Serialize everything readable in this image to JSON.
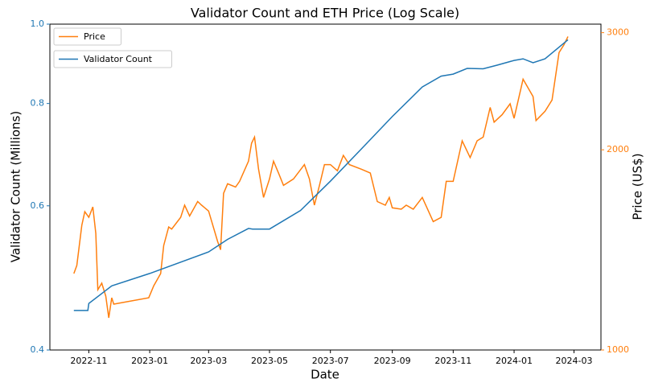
{
  "chart_data": {
    "type": "line",
    "title": "Validator Count and ETH Price (Log Scale)",
    "xlabel": "Date",
    "ylabel": "Validator Count (Millions)",
    "y2label": "Price (US$)",
    "xlim": [
      "2022-09-23",
      "2024-03-28"
    ],
    "xticks": [
      "2022-11",
      "2023-01",
      "2023-03",
      "2023-05",
      "2023-07",
      "2023-09",
      "2023-11",
      "2024-01",
      "2024-03"
    ],
    "ylim": [
      0.4,
      1
    ],
    "yticks": [
      0.4,
      0.6,
      0.8,
      {
        "value": 1,
        "label": "1.0"
      }
    ],
    "ylog": true,
    "y2lim": [
      1000,
      3090
    ],
    "y2ticks": [
      1000,
      2000,
      3000
    ],
    "y2log": true,
    "series": [
      {
        "name": "Price",
        "color": "#ff7f0e",
        "axis": "y2",
        "legend": "upper left",
        "x": [
          "2022-10-17",
          "2022-10-20",
          "2022-10-25",
          "2022-10-28",
          "2022-11-01",
          "2022-11-05",
          "2022-11-08",
          "2022-11-10",
          "2022-11-14",
          "2022-11-18",
          "2022-11-21",
          "2022-11-24",
          "2022-11-26",
          "2022-12-31",
          "2023-01-05",
          "2023-01-12",
          "2023-01-15",
          "2023-01-20",
          "2023-01-23",
          "2023-02-01",
          "2023-02-05",
          "2023-02-10",
          "2023-02-18",
          "2023-02-22",
          "2023-03-01",
          "2023-03-10",
          "2023-03-13",
          "2023-03-16",
          "2023-03-20",
          "2023-03-28",
          "2023-04-01",
          "2023-04-10",
          "2023-04-13",
          "2023-04-16",
          "2023-04-20",
          "2023-04-25",
          "2023-05-01",
          "2023-05-05",
          "2023-05-10",
          "2023-05-15",
          "2023-05-25",
          "2023-06-05",
          "2023-06-10",
          "2023-06-15",
          "2023-06-20",
          "2023-06-25",
          "2023-07-01",
          "2023-07-08",
          "2023-07-14",
          "2023-07-20",
          "2023-08-01",
          "2023-08-10",
          "2023-08-17",
          "2023-08-25",
          "2023-08-29",
          "2023-09-01",
          "2023-09-10",
          "2023-09-15",
          "2023-09-22",
          "2023-10-01",
          "2023-10-12",
          "2023-10-20",
          "2023-10-25",
          "2023-11-01",
          "2023-11-10",
          "2023-11-18",
          "2023-11-25",
          "2023-12-01",
          "2023-12-08",
          "2023-12-12",
          "2023-12-20",
          "2023-12-28",
          "2024-01-01",
          "2024-01-10",
          "2024-01-12",
          "2024-01-20",
          "2024-01-23",
          "2024-02-01",
          "2024-02-08",
          "2024-02-15",
          "2024-02-20",
          "2024-02-24"
        ],
        "values": [
          1303,
          1340,
          1540,
          1614,
          1583,
          1641,
          1497,
          1232,
          1260,
          1205,
          1118,
          1198,
          1172,
          1198,
          1249,
          1303,
          1436,
          1531,
          1520,
          1583,
          1651,
          1590,
          1672,
          1651,
          1618,
          1456,
          1415,
          1720,
          1778,
          1758,
          1793,
          1923,
          2046,
          2090,
          1870,
          1696,
          1808,
          1923,
          1845,
          1768,
          1808,
          1900,
          1808,
          1651,
          1768,
          1900,
          1900,
          1860,
          1962,
          1900,
          1870,
          1845,
          1672,
          1651,
          1696,
          1636,
          1628,
          1651,
          1628,
          1696,
          1560,
          1583,
          1793,
          1793,
          2063,
          1947,
          2063,
          2090,
          2316,
          2201,
          2258,
          2345,
          2230,
          2554,
          2523,
          2405,
          2213,
          2285,
          2376,
          2800,
          2878,
          2960
        ]
      },
      {
        "name": "Validator Count",
        "color": "#1f77b4",
        "axis": "y",
        "legend": "upper left",
        "x": [
          "2022-10-17",
          "2022-10-31",
          "2022-11-01",
          "2022-11-24",
          "2023-01-01",
          "2023-03-01",
          "2023-03-20",
          "2023-04-10",
          "2023-04-14",
          "2023-05-01",
          "2023-06-01",
          "2023-07-01",
          "2023-08-01",
          "2023-09-01",
          "2023-10-01",
          "2023-10-20",
          "2023-11-01",
          "2023-11-15",
          "2023-12-01",
          "2023-12-15",
          "2024-01-01",
          "2024-01-10",
          "2024-01-20",
          "2024-02-01",
          "2024-02-24"
        ],
        "values": [
          0.447,
          0.447,
          0.456,
          0.479,
          0.496,
          0.527,
          0.546,
          0.563,
          0.562,
          0.562,
          0.592,
          0.643,
          0.704,
          0.771,
          0.838,
          0.864,
          0.869,
          0.883,
          0.882,
          0.891,
          0.903,
          0.907,
          0.897,
          0.907,
          0.957
        ]
      }
    ]
  }
}
